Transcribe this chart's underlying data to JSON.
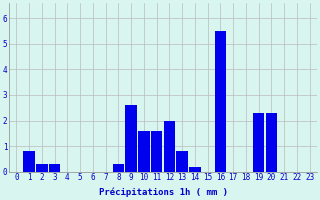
{
  "hours": [
    0,
    1,
    2,
    3,
    4,
    5,
    6,
    7,
    8,
    9,
    10,
    11,
    12,
    13,
    14,
    15,
    16,
    17,
    18,
    19,
    20,
    21,
    22,
    23
  ],
  "values": [
    0,
    0.8,
    0.3,
    0.3,
    0,
    0,
    0,
    0,
    0.3,
    2.6,
    1.6,
    1.6,
    2.0,
    0.8,
    0.2,
    0,
    5.5,
    0,
    0,
    2.3,
    2.3,
    0,
    0,
    0
  ],
  "bar_color": "#0000ee",
  "background_color": "#d8f5f0",
  "grid_color": "#bbbbbb",
  "xlabel": "Précipitations 1h ( mm )",
  "xlabel_fontsize": 6.5,
  "ylabel_ticks": [
    0,
    1,
    2,
    3,
    4,
    5,
    6
  ],
  "ylim": [
    0,
    6.6
  ],
  "tick_label_fontsize": 5.5,
  "tick_label_color": "#0000cc",
  "bar_width": 0.9
}
